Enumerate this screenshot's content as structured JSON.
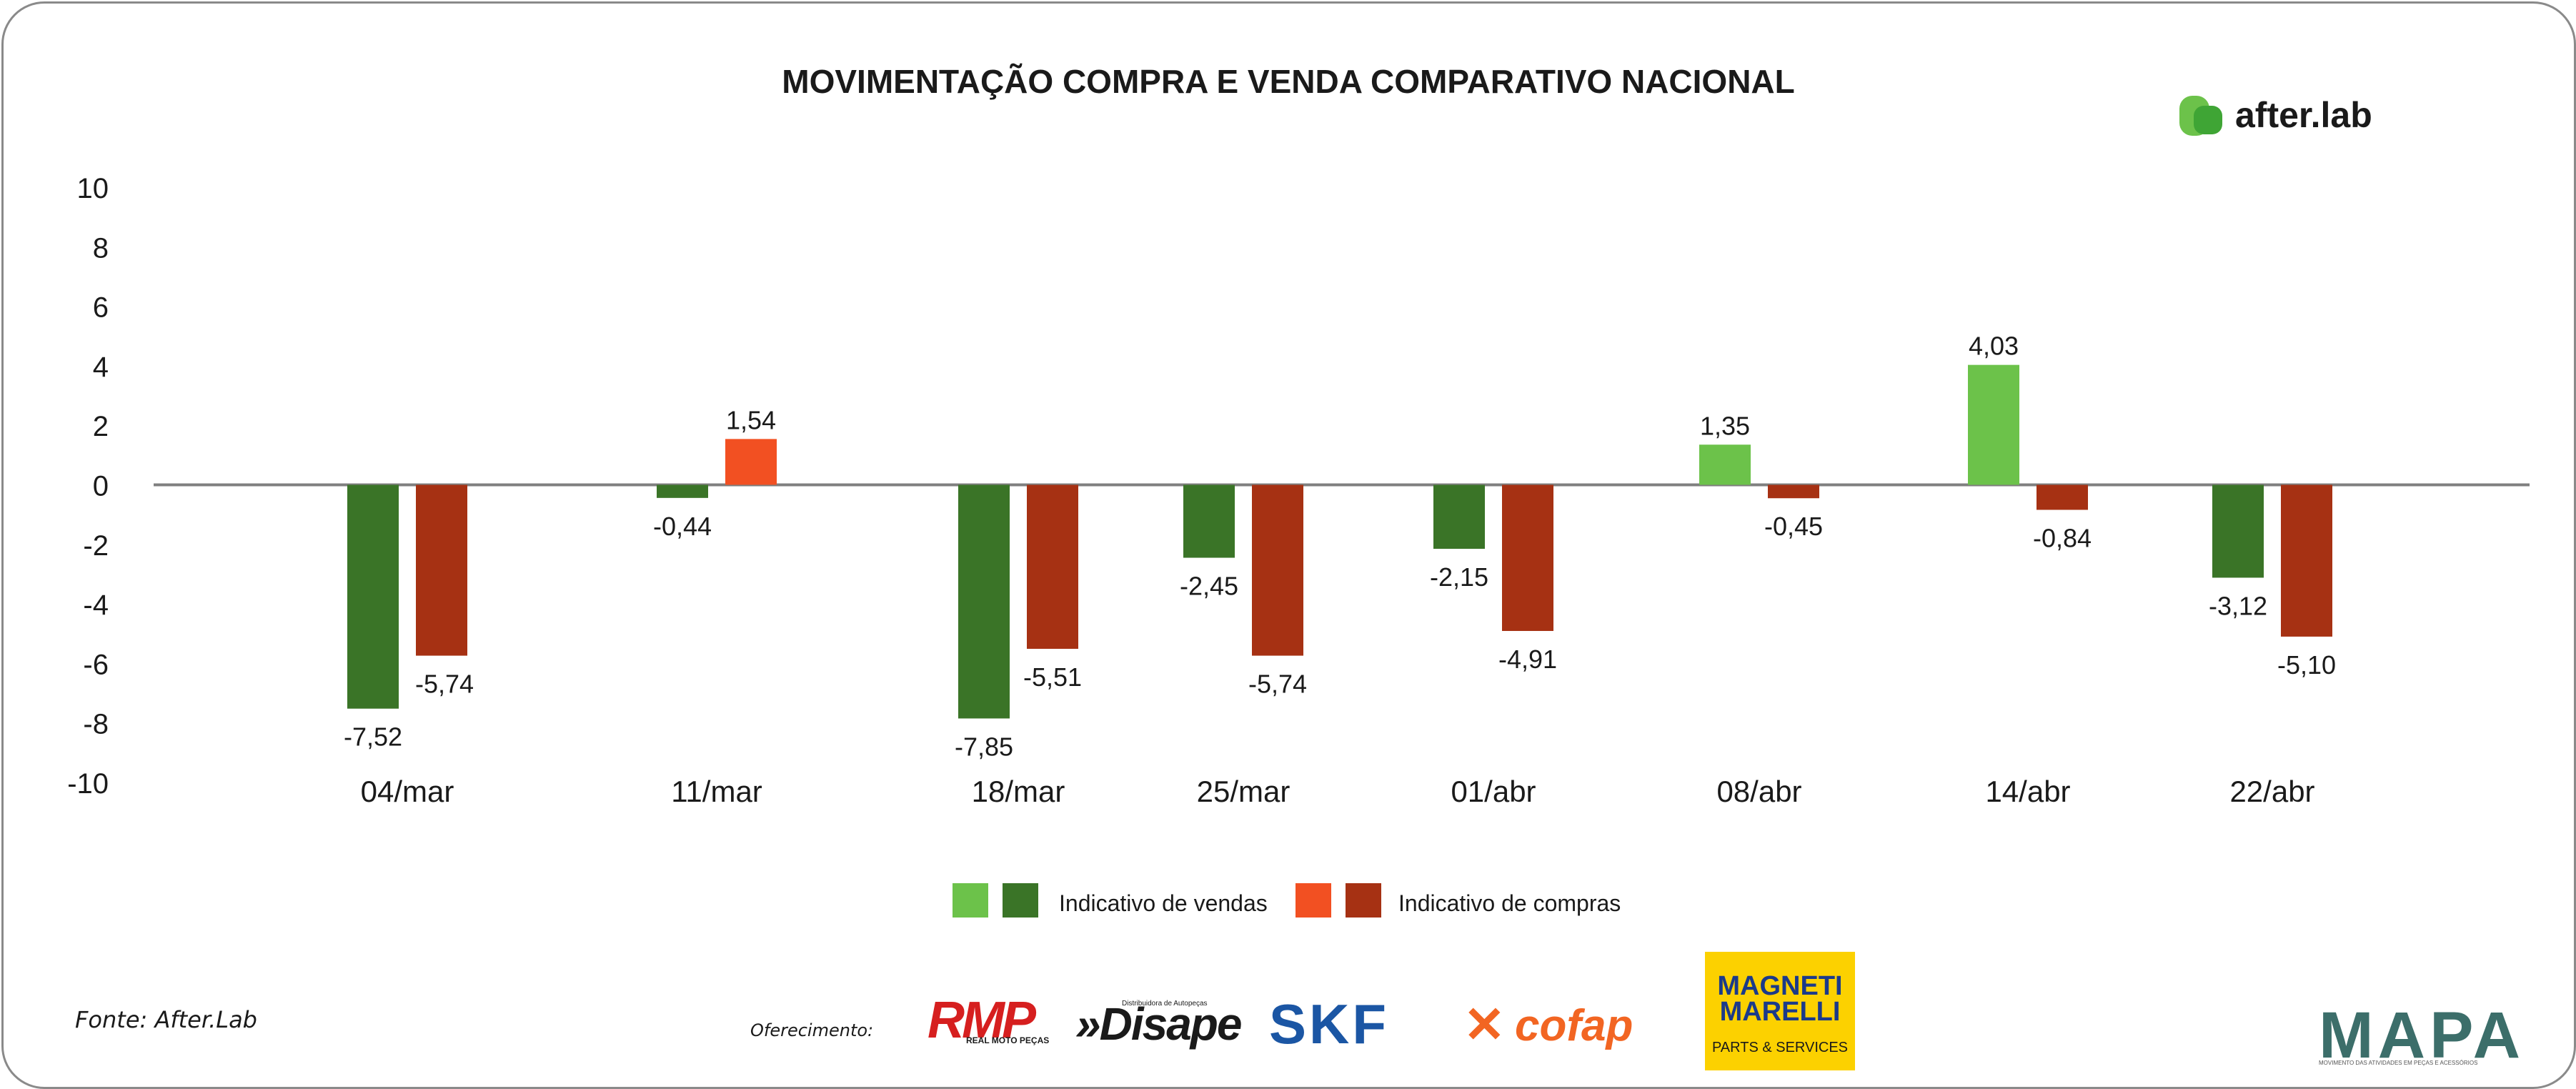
{
  "chart_data": {
    "type": "bar",
    "title": "MOVIMENTAÇÃO COMPRA E VENDA COMPARATIVO NACIONAL",
    "categories": [
      "04/mar",
      "11/mar",
      "18/mar",
      "25/mar",
      "01/abr",
      "08/abr",
      "14/abr",
      "22/abr"
    ],
    "series": [
      {
        "name": "Indicativo de vendas",
        "values": [
          -7.52,
          -0.44,
          -7.85,
          -2.45,
          -2.15,
          1.35,
          4.03,
          -3.12
        ],
        "labels": [
          "-7,52",
          "-0,44",
          "-7,85",
          "-2,45",
          "-2,15",
          "1,35",
          "4,03",
          "-3,12"
        ],
        "color_positive": "#6cc24a",
        "color_negative": "#3a7427"
      },
      {
        "name": "Indicativo de compras",
        "values": [
          -5.74,
          1.54,
          -5.51,
          -5.74,
          -4.91,
          -0.45,
          -0.84,
          -5.1
        ],
        "labels": [
          "-5,74",
          "1,54",
          "-5,51",
          "-5,74",
          "-4,91",
          "-0,45",
          "-0,84",
          "-5,10"
        ],
        "color_positive": "#f25022",
        "color_negative": "#a63113"
      }
    ],
    "ylim": [
      -10,
      10
    ],
    "yticks": [
      10,
      8,
      6,
      4,
      2,
      0,
      -2,
      -4,
      -6,
      -8,
      -10
    ],
    "ytick_labels": [
      "10",
      "8",
      "6",
      "4",
      "2",
      "0",
      "-2",
      "-4",
      "-6",
      "-8",
      "-10"
    ],
    "xlabel": "",
    "ylabel": "",
    "legend": [
      {
        "label": "Indicativo de vendas",
        "colors": [
          "#6cc24a",
          "#3a7427"
        ]
      },
      {
        "label": "Indicativo de compras",
        "colors": [
          "#f25022",
          "#a63113"
        ]
      }
    ],
    "legend_position": "bottom-center"
  },
  "brand": {
    "name": "after.lab",
    "color": "#6cc24a"
  },
  "footer": {
    "source": "Fonte: After.Lab",
    "offered_by": "Oferecimento:",
    "sponsors": [
      {
        "name": "RMP",
        "tagline": "REAL MOTO PEÇAS"
      },
      {
        "name": "»Disape",
        "tagline": "Distribuidora de Autopeças"
      },
      {
        "name": "SKF"
      },
      {
        "name": "cofap"
      },
      {
        "name": "MAGNETI MARELLI",
        "tagline": "PARTS & SERVICES"
      }
    ],
    "mapa": {
      "name": "MAPA",
      "tagline": "MOVIMENTO DAS ATIVIDADES EM PEÇAS E ACESSÓRIOS"
    }
  }
}
